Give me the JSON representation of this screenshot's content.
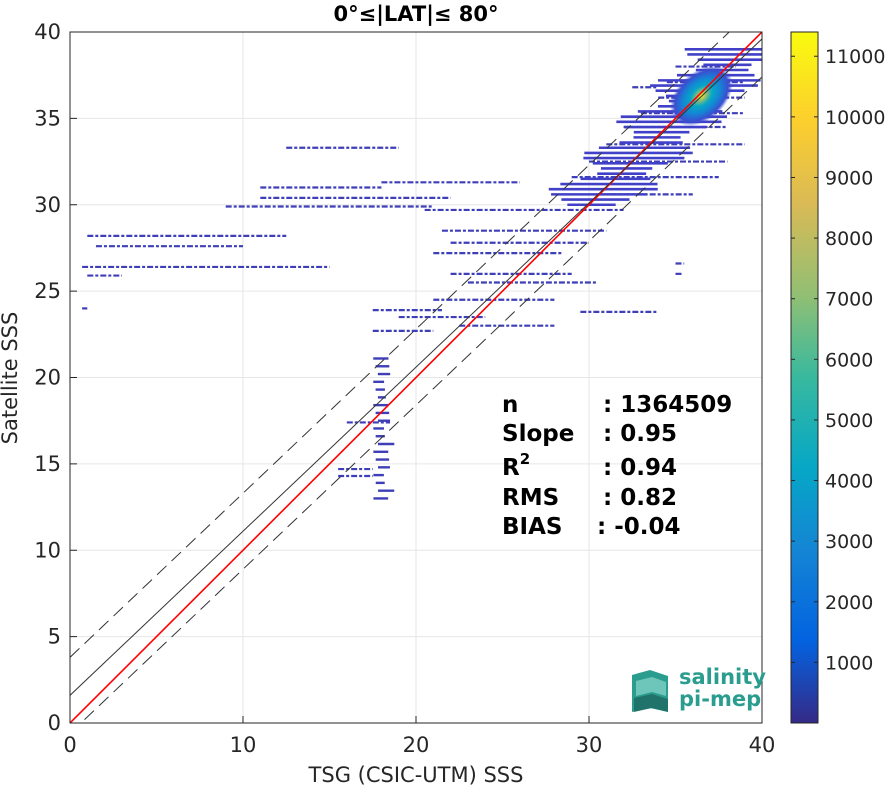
{
  "chart_data": {
    "type": "scatter",
    "subtype": "density-scatter-2d-histogram",
    "title": "0°≤|LAT|≤ 80°",
    "xlabel": "TSG (CSIC-UTM) SSS",
    "ylabel": "Satellite SSS",
    "xlim": [
      0,
      40
    ],
    "ylim": [
      0,
      40
    ],
    "xticks": [
      "0",
      "10",
      "20",
      "30",
      "40"
    ],
    "yticks": [
      "0",
      "5",
      "10",
      "15",
      "20",
      "25",
      "30",
      "35",
      "40"
    ],
    "grid": true,
    "colorbar": {
      "range": [
        0,
        11400
      ],
      "ticks": [
        "1000",
        "2000",
        "3000",
        "4000",
        "5000",
        "6000",
        "7000",
        "8000",
        "9000",
        "10000",
        "11000"
      ],
      "tick_values": [
        1000,
        2000,
        3000,
        4000,
        5000,
        6000,
        7000,
        8000,
        9000,
        10000,
        11000
      ],
      "colormap": "parula"
    },
    "lines": [
      {
        "role": "identity",
        "color": "#ff0000",
        "slope": 1.0,
        "intercept": 0.0
      },
      {
        "role": "regression",
        "color": "#333333",
        "slope": 0.95,
        "intercept": 1.6
      },
      {
        "role": "upper-bound",
        "color": "#333333",
        "dashed": true,
        "slope": 0.95,
        "intercept": 3.8
      },
      {
        "role": "lower-bound",
        "color": "#333333",
        "dashed": true,
        "slope": 0.95,
        "intercept": -0.6
      }
    ],
    "stats": [
      {
        "label": "n",
        "value": ": 1364509"
      },
      {
        "label": "Slope",
        "value": ": 0.95"
      },
      {
        "label": "R",
        "sup": "2",
        "value": ": 0.94"
      },
      {
        "label": "RMS",
        "value": ": 0.82"
      },
      {
        "label": "BIAS",
        "value": ": -0.04"
      }
    ],
    "horizontal_streaks": [
      {
        "x0": 1.0,
        "x1": 12.5,
        "y": 28.2
      },
      {
        "x0": 1.5,
        "x1": 10.0,
        "y": 27.6
      },
      {
        "x0": 0.7,
        "x1": 15.0,
        "y": 26.4
      },
      {
        "x0": 1.0,
        "x1": 3.0,
        "y": 25.9
      },
      {
        "x0": 12.5,
        "x1": 19.0,
        "y": 33.3
      },
      {
        "x0": 11.0,
        "x1": 18.0,
        "y": 31.0
      },
      {
        "x0": 11.0,
        "x1": 22.0,
        "y": 30.4
      },
      {
        "x0": 9.0,
        "x1": 21.0,
        "y": 29.9
      },
      {
        "x0": 18.0,
        "x1": 26.0,
        "y": 31.3
      },
      {
        "x0": 20.5,
        "x1": 32.0,
        "y": 29.7
      },
      {
        "x0": 21.5,
        "x1": 31.0,
        "y": 28.5
      },
      {
        "x0": 22.0,
        "x1": 30.0,
        "y": 27.8
      },
      {
        "x0": 21.0,
        "x1": 28.5,
        "y": 27.2
      },
      {
        "x0": 22.0,
        "x1": 29.0,
        "y": 26.0
      },
      {
        "x0": 23.0,
        "x1": 30.5,
        "y": 25.5
      },
      {
        "x0": 21.0,
        "x1": 28.0,
        "y": 24.5
      },
      {
        "x0": 22.5,
        "x1": 28.0,
        "y": 23.0
      },
      {
        "x0": 19.0,
        "x1": 24.0,
        "y": 23.5
      },
      {
        "x0": 17.5,
        "x1": 21.5,
        "y": 23.9
      },
      {
        "x0": 17.5,
        "x1": 21.0,
        "y": 22.7
      },
      {
        "x0": 29.5,
        "x1": 34.0,
        "y": 23.8
      },
      {
        "x0": 16.0,
        "x1": 18.5,
        "y": 17.4
      },
      {
        "x0": 15.5,
        "x1": 17.5,
        "y": 14.7
      },
      {
        "x0": 15.5,
        "x1": 17.5,
        "y": 14.3
      },
      {
        "x0": 0.7,
        "x1": 1.0,
        "y": 24.0
      },
      {
        "x0": 31.0,
        "x1": 39.0,
        "y": 33.5
      },
      {
        "x0": 30.0,
        "x1": 38.0,
        "y": 32.5
      },
      {
        "x0": 29.0,
        "x1": 37.5,
        "y": 31.6
      },
      {
        "x0": 30.5,
        "x1": 36.0,
        "y": 30.6
      },
      {
        "x0": 32.0,
        "x1": 38.0,
        "y": 34.5
      },
      {
        "x0": 33.0,
        "x1": 39.0,
        "y": 35.3
      },
      {
        "x0": 34.0,
        "x1": 39.0,
        "y": 36.2
      },
      {
        "x0": 34.5,
        "x1": 39.0,
        "y": 37.1
      },
      {
        "x0": 35.0,
        "x1": 38.5,
        "y": 38.0
      },
      {
        "x0": 32.5,
        "x1": 34.0,
        "y": 36.8
      },
      {
        "x0": 35.0,
        "x1": 35.5,
        "y": 26.6
      },
      {
        "x0": 35.0,
        "x1": 35.4,
        "y": 26.0
      }
    ],
    "vertical_cluster": {
      "x0": 17.5,
      "x1": 18.5,
      "y0": 13.0,
      "y1": 21.5
    },
    "hotspot": {
      "x": 36.5,
      "y": 36.3,
      "peak": 11300
    }
  },
  "logo": {
    "line1": "salinity",
    "line2": "pi-mep"
  }
}
